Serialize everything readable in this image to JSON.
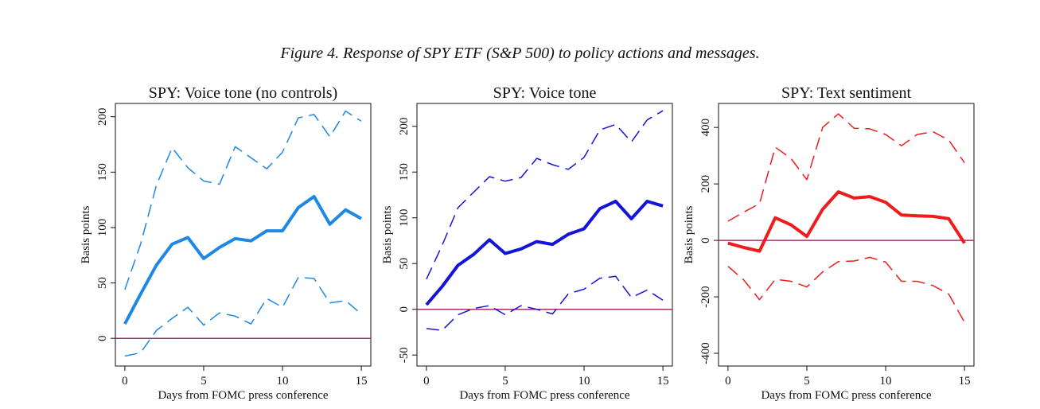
{
  "figure": {
    "caption": "Figure 4. Response of SPY ETF (S&P 500) to policy actions and messages."
  },
  "chart_data": [
    {
      "type": "line",
      "title": "SPY: Voice tone (no controls)",
      "xlabel": "Days from FOMC press conference",
      "ylabel": "Basis points",
      "xlim": [
        -0.6,
        15.6
      ],
      "ylim": [
        -25,
        212
      ],
      "xticks": [
        0,
        5,
        10,
        15
      ],
      "yticks": [
        0,
        50,
        100,
        150,
        200
      ],
      "zero_line_color": "#a0306a",
      "x": [
        0,
        1,
        2,
        3,
        4,
        5,
        6,
        7,
        8,
        9,
        10,
        11,
        12,
        13,
        14,
        15
      ],
      "series": [
        {
          "name": "estimate",
          "style": "solid",
          "color": "#1e88e5",
          "values": [
            13,
            40,
            66,
            85,
            91,
            72,
            82,
            90,
            88,
            97,
            97,
            118,
            128,
            103,
            116,
            108
          ]
        },
        {
          "name": "upper",
          "style": "dashed",
          "color": "#1e88e5",
          "values": [
            44,
            85,
            138,
            172,
            154,
            142,
            139,
            173,
            163,
            153,
            168,
            199,
            202,
            182,
            205,
            196
          ]
        },
        {
          "name": "lower",
          "style": "dashed",
          "color": "#1e88e5",
          "values": [
            -16,
            -13,
            7,
            18,
            28,
            12,
            23,
            20,
            13,
            36,
            28,
            55,
            54,
            32,
            34,
            22
          ]
        }
      ]
    },
    {
      "type": "line",
      "title": "SPY: Voice tone",
      "xlabel": "Days from FOMC press conference",
      "ylabel": "Basis points",
      "xlim": [
        -0.6,
        15.6
      ],
      "ylim": [
        -62,
        225
      ],
      "xticks": [
        0,
        5,
        10,
        15
      ],
      "yticks": [
        -50,
        0,
        50,
        100,
        150,
        200
      ],
      "zero_line_color": "#a0306a",
      "x": [
        0,
        1,
        2,
        3,
        4,
        5,
        6,
        7,
        8,
        9,
        10,
        11,
        12,
        13,
        14,
        15
      ],
      "series": [
        {
          "name": "estimate",
          "style": "solid",
          "color": "#1414d8",
          "values": [
            5,
            25,
            48,
            60,
            76,
            61,
            66,
            74,
            71,
            82,
            88,
            110,
            118,
            99,
            118,
            113
          ]
        },
        {
          "name": "upper",
          "style": "dashed",
          "color": "#1414d8",
          "values": [
            33,
            70,
            111,
            128,
            145,
            140,
            144,
            165,
            158,
            153,
            166,
            196,
            202,
            183,
            207,
            217
          ]
        },
        {
          "name": "lower",
          "style": "dashed",
          "color": "#1414d8",
          "values": [
            -21,
            -23,
            -6,
            1,
            4,
            -6,
            4,
            0,
            -5,
            17,
            22,
            34,
            36,
            13,
            21,
            10
          ]
        }
      ]
    },
    {
      "type": "line",
      "title": "SPY: Text sentiment",
      "xlabel": "Days from FOMC press conference",
      "ylabel": "Basis points",
      "xlim": [
        -0.6,
        15.6
      ],
      "ylim": [
        -445,
        485
      ],
      "xticks": [
        0,
        5,
        10,
        15
      ],
      "yticks": [
        -400,
        -200,
        0,
        200,
        400
      ],
      "zero_line_color": "#a0306a",
      "x": [
        0,
        1,
        2,
        3,
        4,
        5,
        6,
        7,
        8,
        9,
        10,
        11,
        12,
        13,
        14,
        15
      ],
      "series": [
        {
          "name": "estimate",
          "style": "solid",
          "color": "#ee1c1c",
          "values": [
            -10,
            -25,
            -38,
            80,
            55,
            14,
            110,
            172,
            150,
            155,
            135,
            90,
            87,
            85,
            77,
            -10
          ]
        },
        {
          "name": "upper",
          "style": "dashed",
          "color": "#ee1c1c",
          "values": [
            68,
            100,
            130,
            330,
            290,
            215,
            400,
            448,
            397,
            395,
            375,
            335,
            375,
            385,
            355,
            275
          ]
        },
        {
          "name": "lower",
          "style": "dashed",
          "color": "#ee1c1c",
          "values": [
            -92,
            -140,
            -210,
            -138,
            -145,
            -165,
            -112,
            -75,
            -73,
            -60,
            -77,
            -145,
            -145,
            -160,
            -190,
            -290
          ]
        }
      ]
    }
  ]
}
